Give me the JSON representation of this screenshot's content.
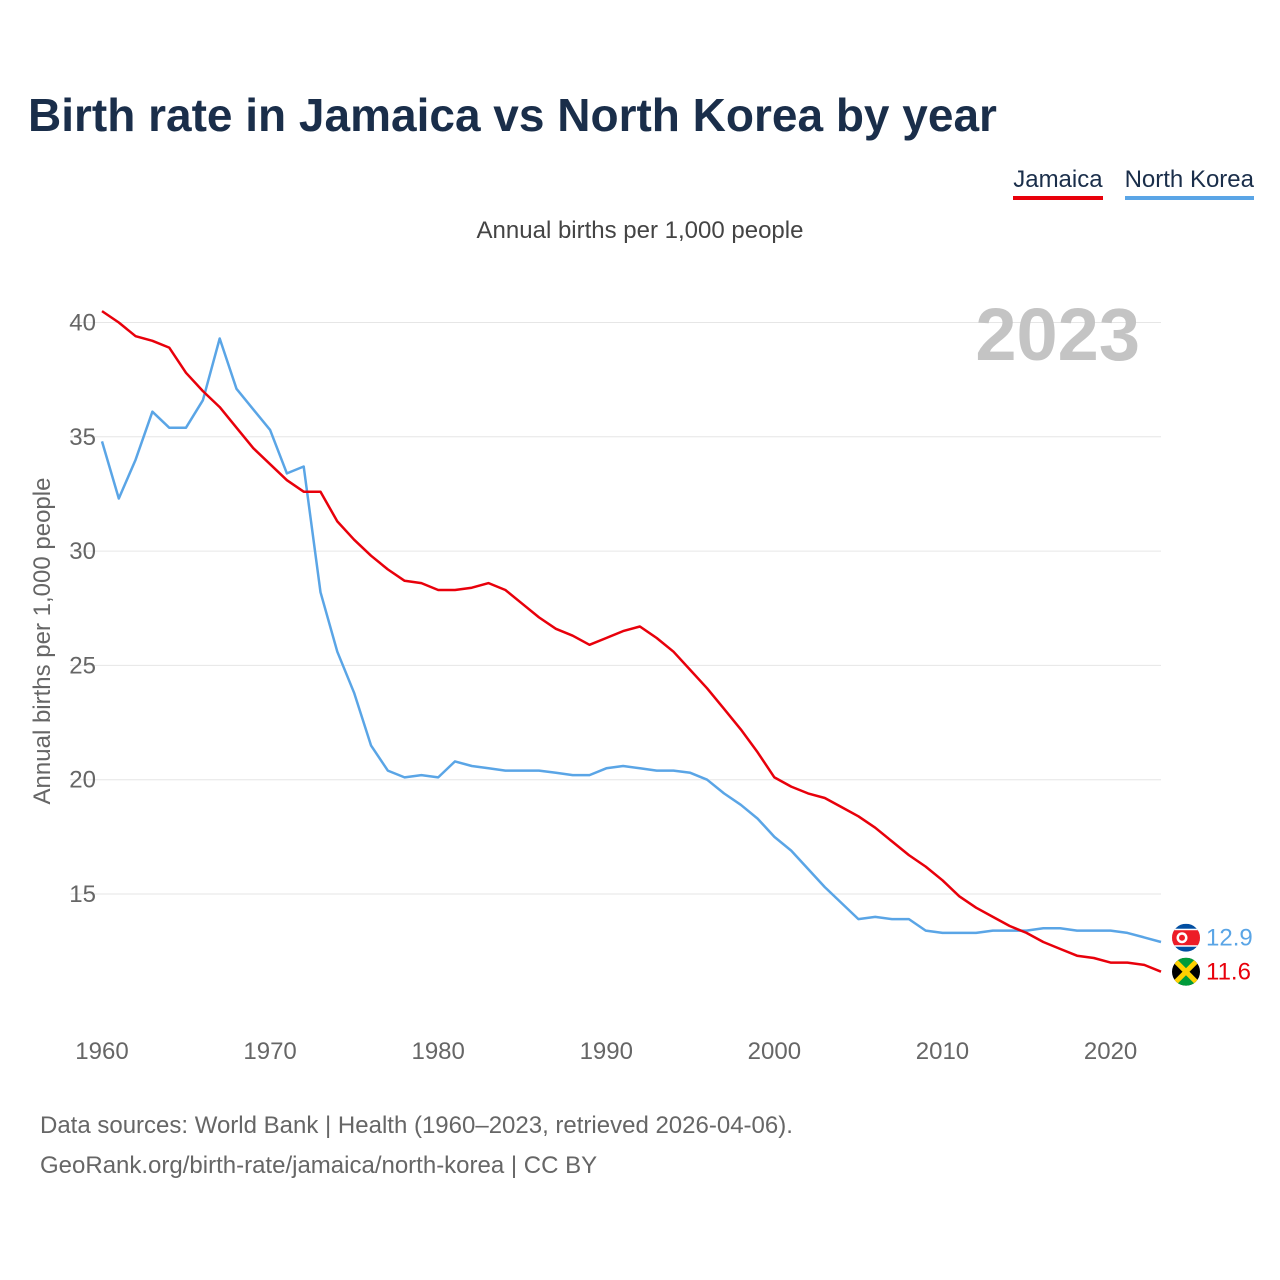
{
  "title": "Birth rate in Jamaica vs North Korea by year",
  "subtitle": "Annual births per 1,000 people",
  "legend": [
    {
      "label": "Jamaica",
      "color": "#e8000b"
    },
    {
      "label": "North Korea",
      "color": "#5aa5e6"
    }
  ],
  "source": {
    "line1": "Data sources: World Bank | Health (1960–2023, retrieved 2026-04-06).",
    "line2": "GeoRank.org/birth-rate/jamaica/north-korea | CC BY"
  },
  "chart_data": {
    "type": "line",
    "year_label": "2023",
    "ylabel": "Annual births per 1,000 people",
    "xlim": [
      1960,
      2023
    ],
    "ylim": [
      10,
      41
    ],
    "yticks": [
      15,
      20,
      25,
      30,
      35,
      40
    ],
    "xticks": [
      1960,
      1970,
      1980,
      1990,
      2000,
      2010,
      2020
    ],
    "grid": true,
    "x": [
      1960,
      1961,
      1962,
      1963,
      1964,
      1965,
      1966,
      1967,
      1968,
      1969,
      1970,
      1971,
      1972,
      1973,
      1974,
      1975,
      1976,
      1977,
      1978,
      1979,
      1980,
      1981,
      1982,
      1983,
      1984,
      1985,
      1986,
      1987,
      1988,
      1989,
      1990,
      1991,
      1992,
      1993,
      1994,
      1995,
      1996,
      1997,
      1998,
      1999,
      2000,
      2001,
      2002,
      2003,
      2004,
      2005,
      2006,
      2007,
      2008,
      2009,
      2010,
      2011,
      2012,
      2013,
      2014,
      2015,
      2016,
      2017,
      2018,
      2019,
      2020,
      2021,
      2022,
      2023
    ],
    "series": [
      {
        "name": "Jamaica",
        "color": "#e8000b",
        "end_label": "11.6",
        "values": [
          40.5,
          40.0,
          39.4,
          39.2,
          38.9,
          37.8,
          37.0,
          36.3,
          35.4,
          34.5,
          33.8,
          33.1,
          32.6,
          32.6,
          31.3,
          30.5,
          29.8,
          29.2,
          28.7,
          28.6,
          28.3,
          28.3,
          28.4,
          28.6,
          28.3,
          27.7,
          27.1,
          26.6,
          26.3,
          25.9,
          26.2,
          26.5,
          26.7,
          26.2,
          25.6,
          24.8,
          24.0,
          23.1,
          22.2,
          21.2,
          20.1,
          19.7,
          19.4,
          19.2,
          18.8,
          18.4,
          17.9,
          17.3,
          16.7,
          16.2,
          15.6,
          14.9,
          14.4,
          14.0,
          13.6,
          13.3,
          12.9,
          12.6,
          12.3,
          12.2,
          12.0,
          12.0,
          11.9,
          11.6
        ]
      },
      {
        "name": "North Korea",
        "color": "#5aa5e6",
        "end_label": "12.9",
        "values": [
          34.8,
          32.3,
          34.0,
          36.1,
          35.4,
          35.4,
          36.6,
          39.3,
          37.1,
          36.2,
          35.3,
          33.4,
          33.7,
          28.2,
          25.6,
          23.8,
          21.5,
          20.4,
          20.1,
          20.2,
          20.1,
          20.8,
          20.6,
          20.5,
          20.4,
          20.4,
          20.4,
          20.3,
          20.2,
          20.2,
          20.5,
          20.6,
          20.5,
          20.4,
          20.4,
          20.3,
          20.0,
          19.4,
          18.9,
          18.3,
          17.5,
          16.9,
          16.1,
          15.3,
          14.6,
          13.9,
          14.0,
          13.9,
          13.9,
          13.4,
          13.3,
          13.3,
          13.3,
          13.4,
          13.4,
          13.4,
          13.5,
          13.5,
          13.4,
          13.4,
          13.4,
          13.3,
          13.1,
          12.9
        ]
      }
    ]
  }
}
